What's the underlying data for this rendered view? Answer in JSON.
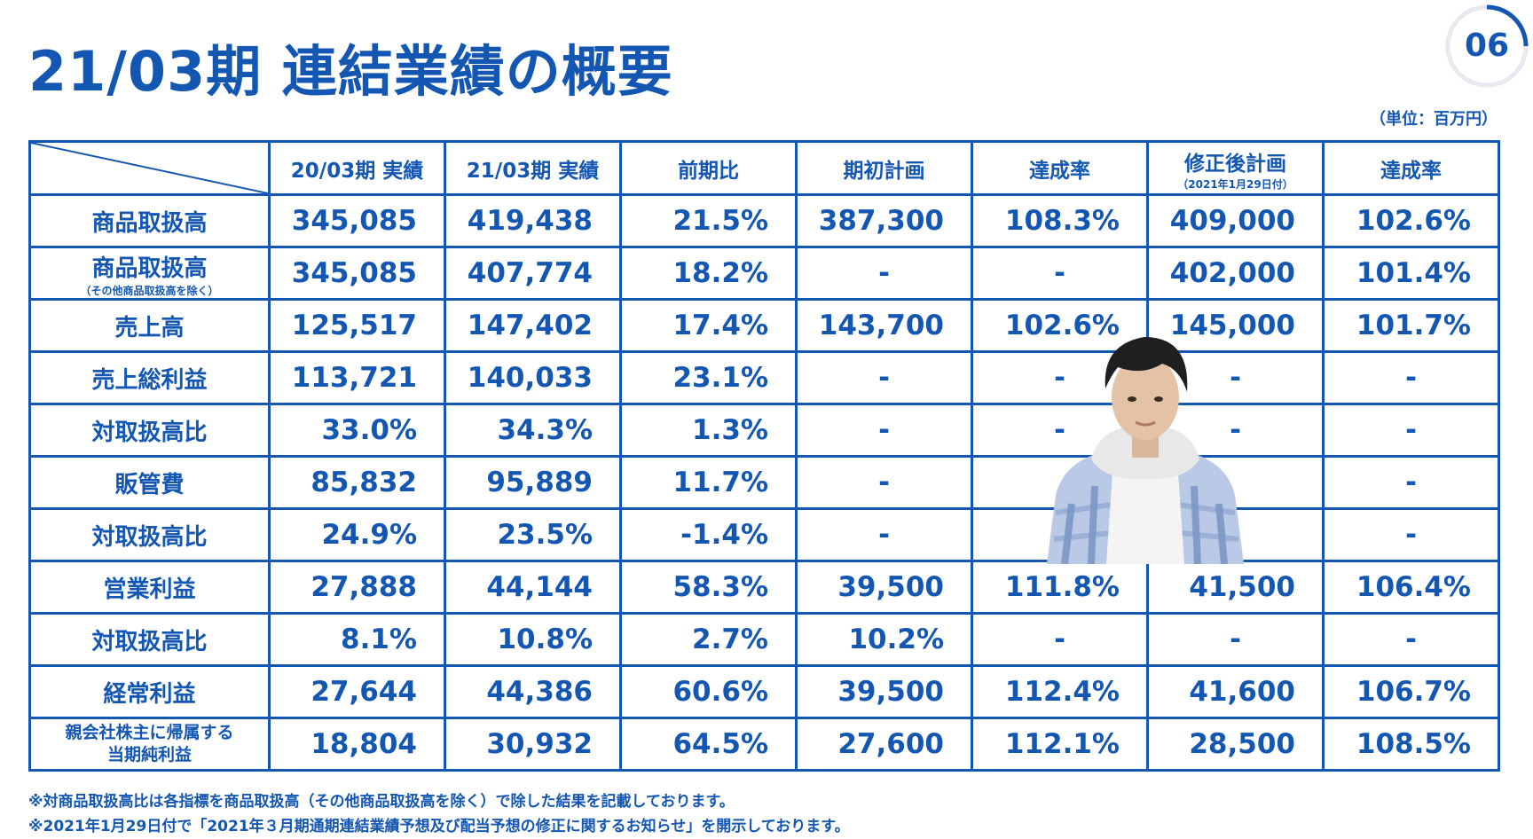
{
  "title": "21/03期 連結業績の概要",
  "page_number": "06",
  "unit": "（単位：百万円）",
  "colors": {
    "primary": "#1457b3"
  },
  "table": {
    "headers": {
      "prev_actual": "20/03期 実績",
      "curr_actual": "21/03期 実績",
      "yoy": "前期比",
      "initial_plan": "期初計画",
      "achievement_1": "達成率",
      "revised_plan": "修正後計画",
      "revised_plan_sub": "（2021年1月29日付）",
      "achievement_2": "達成率"
    },
    "rows": [
      {
        "label": "商品取扱高",
        "sub": "",
        "values": [
          "345,085",
          "419,438",
          "21.5%",
          "387,300",
          "108.3%",
          "409,000",
          "102.6%"
        ]
      },
      {
        "label": "商品取扱高",
        "sub": "（その他商品取扱高を除く）",
        "values": [
          "345,085",
          "407,774",
          "18.2%",
          "-",
          "-",
          "402,000",
          "101.4%"
        ]
      },
      {
        "label": "売上高",
        "sub": "",
        "values": [
          "125,517",
          "147,402",
          "17.4%",
          "143,700",
          "102.6%",
          "145,000",
          "101.7%"
        ]
      },
      {
        "label": "売上総利益",
        "sub": "",
        "values": [
          "113,721",
          "140,033",
          "23.1%",
          "-",
          "-",
          "-",
          "-"
        ]
      },
      {
        "label": "対取扱高比",
        "sub": "",
        "values": [
          "33.0%",
          "34.3%",
          "1.3%",
          "-",
          "-",
          "-",
          "-"
        ]
      },
      {
        "label": "販管費",
        "sub": "",
        "values": [
          "85,832",
          "95,889",
          "11.7%",
          "-",
          "",
          "",
          "-"
        ]
      },
      {
        "label": "対取扱高比",
        "sub": "",
        "values": [
          "24.9%",
          "23.5%",
          "-1.4%",
          "-",
          "",
          "",
          "-"
        ]
      },
      {
        "label": "営業利益",
        "sub": "",
        "values": [
          "27,888",
          "44,144",
          "58.3%",
          "39,500",
          "111.8%",
          "41,500",
          "106.4%"
        ]
      },
      {
        "label": "対取扱高比",
        "sub": "",
        "values": [
          "8.1%",
          "10.8%",
          "2.7%",
          "10.2%",
          "-",
          "-",
          "-"
        ]
      },
      {
        "label": "経常利益",
        "sub": "",
        "values": [
          "27,644",
          "44,386",
          "60.6%",
          "39,500",
          "112.4%",
          "41,600",
          "106.7%"
        ]
      },
      {
        "label": "親会社株主に帰属する",
        "label2": "当期純利益",
        "sub": "",
        "values": [
          "18,804",
          "30,932",
          "64.5%",
          "27,600",
          "112.1%",
          "28,500",
          "108.5%"
        ]
      }
    ]
  },
  "notes": [
    "※対商品取扱高比は各指標を商品取扱高（その他商品取扱高を除く）で除した結果を記載しております。",
    "※2021年1月29日付で「2021年３月期通期連結業績予想及び配当予想の修正に関するお知らせ」を開示しております。"
  ]
}
